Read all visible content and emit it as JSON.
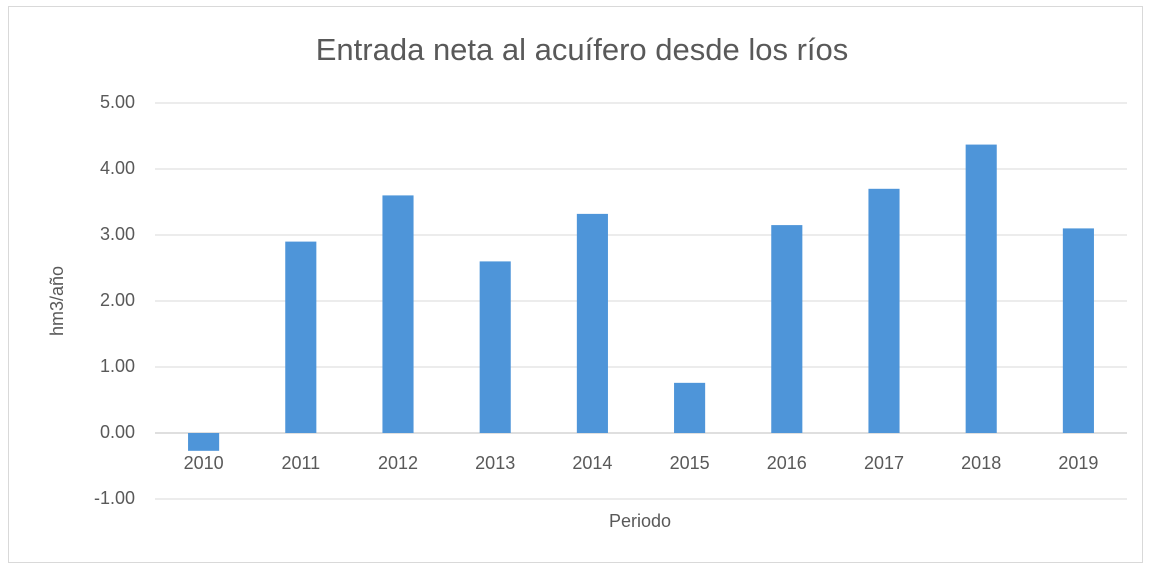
{
  "chart_data": {
    "type": "bar",
    "title": "Entrada neta al acuífero desde los ríos",
    "x_label": "Periodo",
    "y_label": "hm3/año",
    "categories": [
      "2010",
      "2011",
      "2012",
      "2013",
      "2014",
      "2015",
      "2016",
      "2017",
      "2018",
      "2019"
    ],
    "values": [
      -0.27,
      2.9,
      3.6,
      2.6,
      3.32,
      0.76,
      3.15,
      3.7,
      4.37,
      3.1
    ],
    "color": "#4e95d9",
    "ylim": [
      -1,
      5
    ],
    "yticks": [
      {
        "value": -1,
        "label": "-1.00"
      },
      {
        "value": 0,
        "label": "0.00"
      },
      {
        "value": 1,
        "label": "1.00"
      },
      {
        "value": 2,
        "label": "2.00"
      },
      {
        "value": 3,
        "label": "3.00"
      },
      {
        "value": 4,
        "label": "4.00"
      },
      {
        "value": 5,
        "label": "5.00"
      }
    ],
    "grid": true
  }
}
